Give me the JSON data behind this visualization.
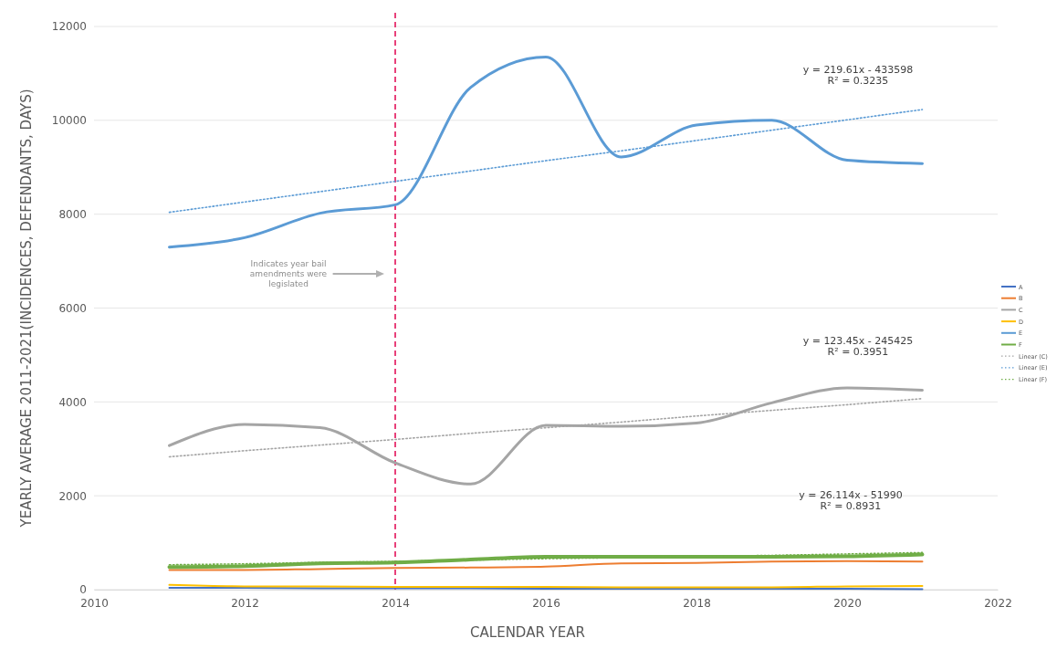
{
  "chart_data": {
    "type": "line",
    "xlabel": "CALENDAR YEAR",
    "ylabel": "YEARLY AVERAGE 2011-2021(INCIDENCES, DEFENDANTS, DAYS)",
    "x": [
      2011,
      2012,
      2013,
      2014,
      2015,
      2016,
      2017,
      2018,
      2019,
      2020,
      2021
    ],
    "xlim": [
      2010,
      2022
    ],
    "xticks": [
      2010,
      2012,
      2014,
      2016,
      2018,
      2020,
      2022
    ],
    "ylim": [
      0,
      12000
    ],
    "yticks": [
      0,
      2000,
      4000,
      6000,
      8000,
      10000,
      12000
    ],
    "grid": "y",
    "legend": "right",
    "marker": "none",
    "series": [
      {
        "name": "A",
        "color": "#4472c4",
        "values": [
          40,
          40,
          30,
          30,
          30,
          20,
          20,
          20,
          20,
          20,
          10
        ]
      },
      {
        "name": "B",
        "color": "#ed7d31",
        "values": [
          420,
          420,
          440,
          460,
          470,
          490,
          560,
          570,
          600,
          610,
          600
        ]
      },
      {
        "name": "C",
        "color": "#a5a5a5",
        "values": [
          3070,
          3520,
          3450,
          2700,
          2250,
          3500,
          3480,
          3550,
          3980,
          4300,
          4250
        ]
      },
      {
        "name": "D",
        "color": "#ffc000",
        "values": [
          100,
          70,
          70,
          60,
          60,
          60,
          50,
          50,
          50,
          70,
          80
        ]
      },
      {
        "name": "E",
        "color": "#5b9bd5",
        "values": [
          7300,
          7500,
          8020,
          8200,
          10700,
          11350,
          9220,
          9900,
          10000,
          9150,
          9080
        ]
      },
      {
        "name": "F",
        "color": "#70ad47",
        "values": [
          480,
          500,
          560,
          580,
          640,
          700,
          700,
          700,
          700,
          710,
          750
        ]
      },
      {
        "name": "Linear (C)",
        "color": "#a5a5a5",
        "line_style": "dotted",
        "values": [
          2830,
          2960,
          3080,
          3200,
          3330,
          3450,
          3570,
          3700,
          3820,
          3940,
          4070
        ]
      },
      {
        "name": "Linear (E)",
        "color": "#5b9bd5",
        "line_style": "dotted",
        "values": [
          8040,
          8260,
          8480,
          8700,
          8920,
          9140,
          9350,
          9570,
          9790,
          10010,
          10230
        ]
      },
      {
        "name": "Linear (F)",
        "color": "#70ad47",
        "line_style": "dotted",
        "values": [
          530,
          550,
          580,
          600,
          630,
          660,
          680,
          710,
          730,
          760,
          790
        ]
      }
    ],
    "ref_lines": [
      {
        "axis": "x",
        "value": 2014,
        "color": "#e8417a",
        "line_style": "dashed"
      }
    ],
    "annotations": [
      "Indicates year bail\namendments were\nlegislated",
      "y = 219.61x - 433598\nR² = 0.3235",
      "y = 123.45x - 245425\nR² = 0.3951",
      "y = 26.114x - 51990\nR² = 0.8931"
    ]
  }
}
